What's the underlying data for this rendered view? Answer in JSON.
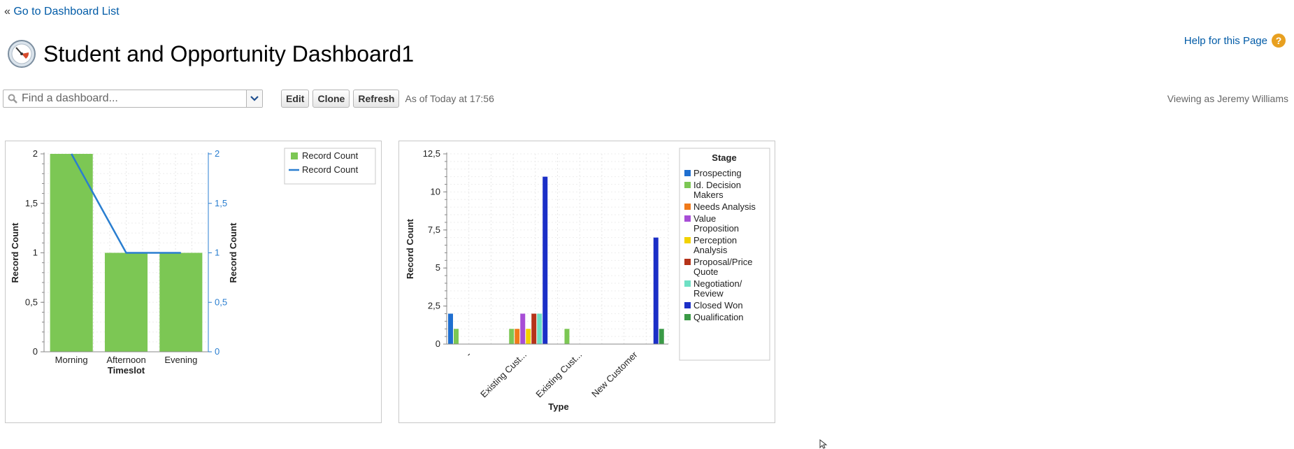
{
  "nav": {
    "prefix": "«",
    "back_label": "Go to Dashboard List"
  },
  "header": {
    "title": "Student and Opportunity Dashboard1",
    "help_label": "Help for this Page",
    "help_glyph": "?"
  },
  "toolbar": {
    "search_placeholder": "Find a dashboard...",
    "edit_label": "Edit",
    "clone_label": "Clone",
    "refresh_label": "Refresh",
    "as_of": "As of Today at 17:56",
    "viewing_as": "Viewing as Jeremy Williams"
  },
  "colors": {
    "link": "#015ba7",
    "bar_green": "#7cc754",
    "line_blue": "#2a7ed0",
    "help_orange": "#e8a020"
  },
  "chart_data": [
    {
      "type": "bar",
      "xlabel": "Timeslot",
      "ylabel": "Record Count",
      "y2label": "Record Count",
      "categories": [
        "Morning",
        "Afternoon",
        "Evening"
      ],
      "ylim": [
        0,
        2
      ],
      "yticks": [
        "0",
        "0,5",
        "1",
        "1,5",
        "2"
      ],
      "series": [
        {
          "name": "Record Count",
          "kind": "bar",
          "color": "#7cc754",
          "values": [
            2,
            1,
            1
          ]
        },
        {
          "name": "Record Count",
          "kind": "line",
          "color": "#2a7ed0",
          "values": [
            2,
            1,
            1
          ]
        }
      ],
      "legend_position": "top-right",
      "grid": true
    },
    {
      "type": "bar",
      "xlabel": "Type",
      "ylabel": "Record Count",
      "legend_title": "Stage",
      "categories": [
        "-",
        "Existing Cust...",
        "Existing Cust...",
        "New Customer"
      ],
      "ylim": [
        0,
        12.5
      ],
      "yticks": [
        "0",
        "2,5",
        "5",
        "7,5",
        "10",
        "12,5"
      ],
      "series": [
        {
          "name": "Prospecting",
          "color": "#1f6fd0",
          "values": [
            2,
            0,
            0,
            0
          ]
        },
        {
          "name": "Id. Decision Makers",
          "color": "#7cc754",
          "values": [
            1,
            1,
            1,
            0
          ]
        },
        {
          "name": "Needs Analysis",
          "color": "#f07a1a",
          "values": [
            0,
            1,
            0,
            0
          ]
        },
        {
          "name": "Value Proposition",
          "color": "#a74ed6",
          "values": [
            0,
            2,
            0,
            0
          ]
        },
        {
          "name": "Perception Analysis",
          "color": "#f2d200",
          "values": [
            0,
            1,
            0,
            0
          ]
        },
        {
          "name": "Proposal/Price Quote",
          "color": "#b5331a",
          "values": [
            0,
            2,
            0,
            0
          ]
        },
        {
          "name": "Negotiation/ Review",
          "color": "#6ee0c4",
          "values": [
            0,
            2,
            0,
            0
          ]
        },
        {
          "name": "Closed Won",
          "color": "#1b2fc7",
          "values": [
            0,
            11,
            0,
            7
          ]
        },
        {
          "name": "Qualification",
          "color": "#3a9a46",
          "values": [
            0,
            0,
            0,
            1
          ]
        }
      ],
      "legend_position": "right",
      "grid": true
    }
  ]
}
